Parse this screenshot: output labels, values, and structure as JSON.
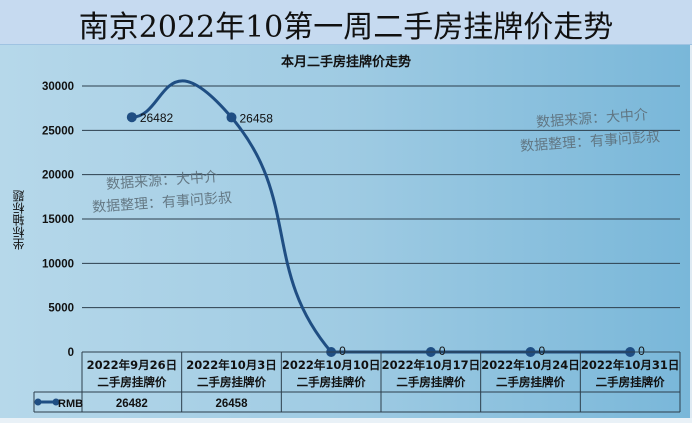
{
  "header": {
    "title": "南京2022年10第一周二手房挂牌价走势"
  },
  "chart_data": {
    "type": "line",
    "title": "本月二手房挂牌价走势",
    "xlabel": "",
    "ylabel": "坐标轴标题",
    "ylim": [
      0,
      30000
    ],
    "yticks": [
      "0",
      "5000",
      "10000",
      "15000",
      "20000",
      "25000",
      "30000"
    ],
    "categories": [
      "2022年9月26日二手房挂牌价",
      "2022年10月3日二手房挂牌价",
      "2022年10月10日二手房挂牌价",
      "2022年10月17日二手房挂牌价",
      "2022年10月24日二手房挂牌价",
      "2022年10月31日二手房挂牌价"
    ],
    "series": [
      {
        "name": "RMB",
        "values": [
          26482,
          26458,
          0,
          0,
          0,
          0
        ],
        "color": "#1f4e83"
      }
    ],
    "data_labels": [
      "26482",
      "26458",
      "0",
      "0",
      "0",
      "0"
    ],
    "legend_position": "data-table",
    "grid": true
  },
  "table": {
    "headers": [
      {
        "l1": "2022年9月26日",
        "l2": "二手房挂牌价"
      },
      {
        "l1": "2022年10月3日",
        "l2": "二手房挂牌价"
      },
      {
        "l1": "2022年10月10日",
        "l2": "二手房挂牌价"
      },
      {
        "l1": "2022年10月17日",
        "l2": "二手房挂牌价"
      },
      {
        "l1": "2022年10月24日",
        "l2": "二手房挂牌价"
      },
      {
        "l1": "2022年10月31日",
        "l2": "二手房挂牌价"
      }
    ],
    "row_label": "RMB",
    "row_values": [
      "26482",
      "26458",
      "",
      "",
      "",
      ""
    ]
  },
  "watermarks": [
    {
      "line1": "数据来源：大中介",
      "line2": "数据整理：有事问彭叔"
    },
    {
      "line1": "数据来源：大中介",
      "line2": "数据整理：有事问彭叔"
    }
  ]
}
